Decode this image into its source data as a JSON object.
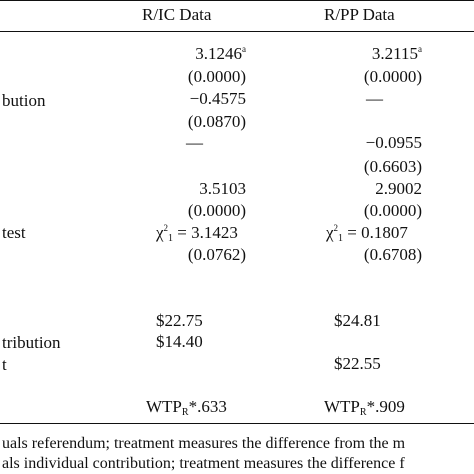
{
  "header": {
    "col1": "R/IC Data",
    "col2": "R/PP Data"
  },
  "rows": {
    "r1": {
      "label": "",
      "v1": "3.1246",
      "v1_sup": "a",
      "v2": "3.2115",
      "v2_sup": "a"
    },
    "r2": {
      "v1": "(0.0000)",
      "v2": "(0.0000)"
    },
    "r3": {
      "label": "bution",
      "v1": "−0.4575",
      "v2": "—"
    },
    "r4": {
      "v1": "(0.0870)"
    },
    "r5": {
      "v1": "—",
      "v2": "−0.0955"
    },
    "r6": {
      "v2": "(0.6603)"
    },
    "r7": {
      "v1": "3.5103",
      "v2": "2.9002"
    },
    "r8": {
      "v1": "(0.0000)",
      "v2": "(0.0000)"
    },
    "r9": {
      "label": "test",
      "chi": "χ",
      "chi_sup": "2",
      "chi_sub": "1",
      "v1": "= 3.1423",
      "v2": "= 0.1807"
    },
    "r10": {
      "v1": "(0.0762)",
      "v2": "(0.6708)"
    },
    "r11": {
      "v1": "$22.75",
      "v2": "$24.81"
    },
    "r12": {
      "label": "tribution",
      "v1": "$14.40"
    },
    "r13": {
      "label": "t",
      "v2": "$22.55"
    },
    "r14": {
      "wtp": "WTP",
      "wtp_sub": "R",
      "v1": "*.633",
      "v2": "*.909"
    }
  },
  "footnotes": {
    "f1": "uals referendum; treatment measures the difference from the m",
    "f2": "als individual contribution; treatment measures the difference f"
  }
}
